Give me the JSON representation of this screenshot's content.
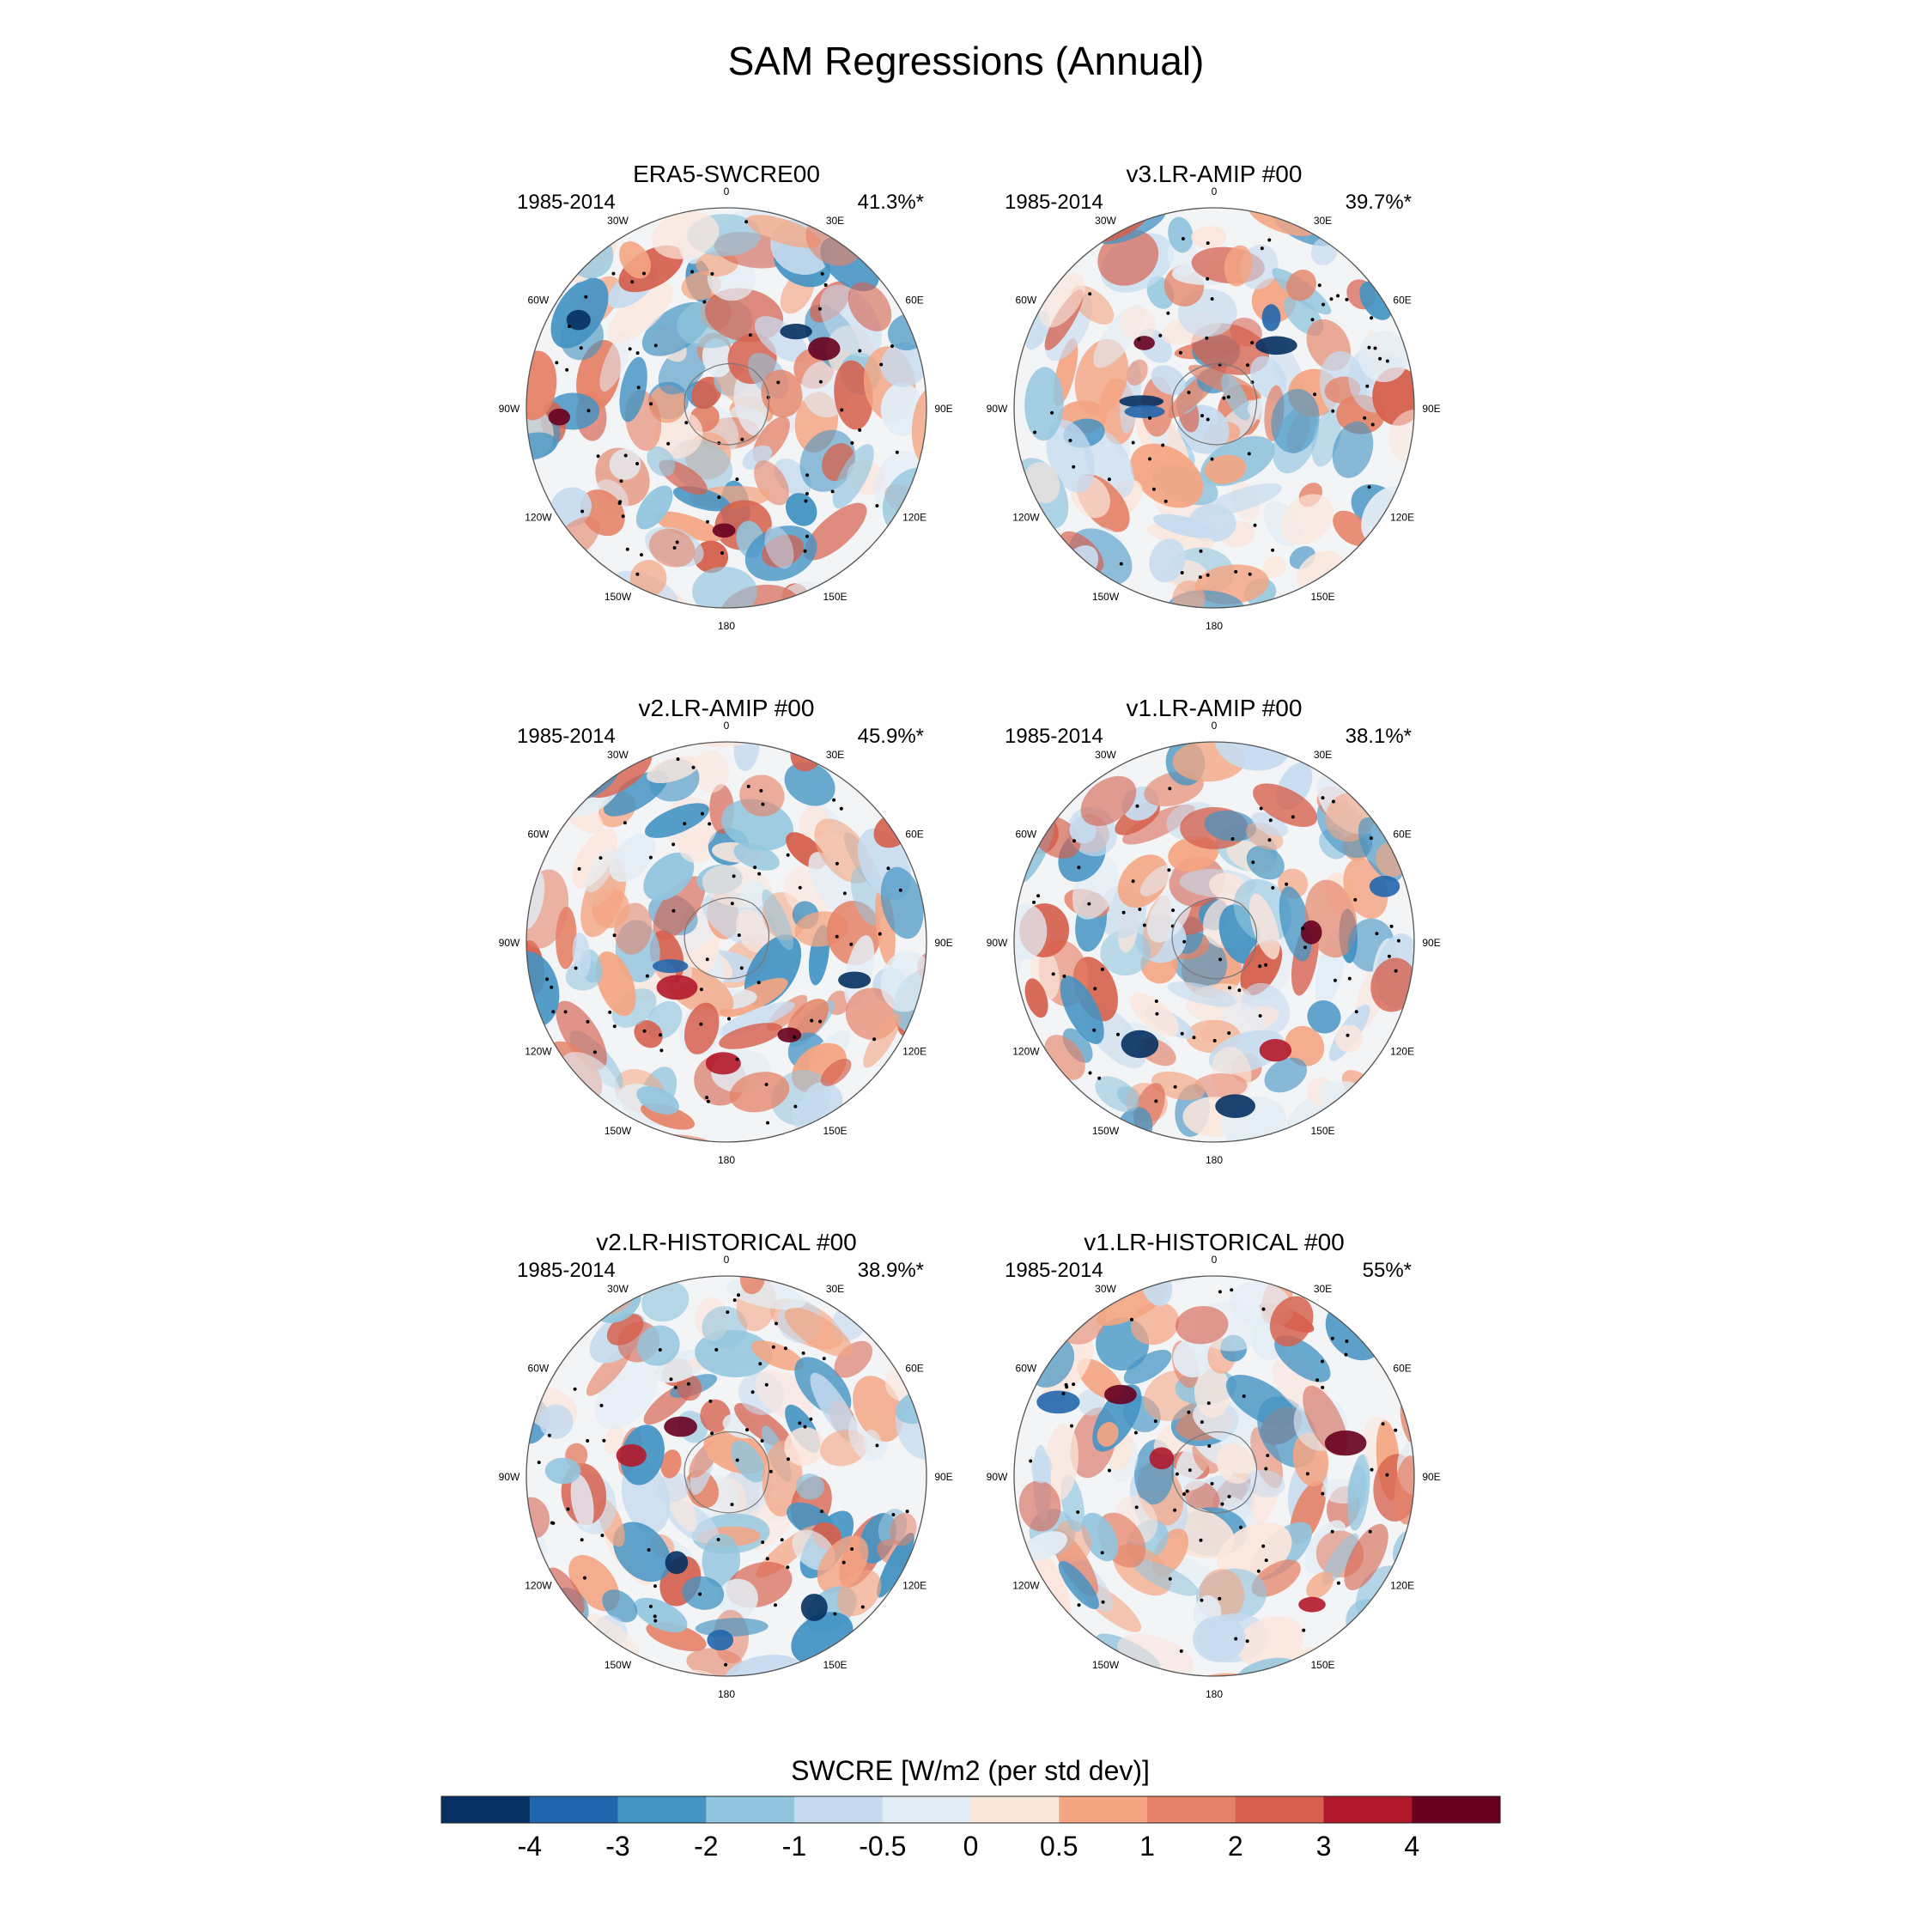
{
  "chart_data": {
    "type": "heatmap",
    "projection": "south-polar-stereographic",
    "title": "SAM Regressions (Annual)",
    "colorbar": {
      "label": "SWCRE [W/m2 (per std dev)]",
      "ticks": [
        "-4",
        "-3",
        "-2",
        "-1",
        "-0.5",
        "0",
        "0.5",
        "1",
        "2",
        "3",
        "4"
      ],
      "colors": [
        "#053061",
        "#2166ac",
        "#4393c3",
        "#92c5de",
        "#c6dbef",
        "#e3edf5",
        "#fbe6dc",
        "#f4a582",
        "#e58267",
        "#d6604d",
        "#b2182b",
        "#67001f"
      ]
    },
    "longitude_labels": [
      "0",
      "30E",
      "60E",
      "90E",
      "120E",
      "150E",
      "180",
      "150W",
      "120W",
      "90W",
      "60W",
      "30W"
    ],
    "panels": [
      {
        "title": "ERA5-SWCRE00",
        "period": "1985-2014",
        "variance": "41.3%*",
        "seed": 11
      },
      {
        "title": "v3.LR-AMIP  #00",
        "period": "1985-2014",
        "variance": "39.7%*",
        "seed": 23
      },
      {
        "title": "v2.LR-AMIP  #00",
        "period": "1985-2014",
        "variance": "45.9%*",
        "seed": 37
      },
      {
        "title": "v1.LR-AMIP  #00",
        "period": "1985-2014",
        "variance": "38.1%*",
        "seed": 41
      },
      {
        "title": "v2.LR-HISTORICAL  #00",
        "period": "1985-2014",
        "variance": "38.9%*",
        "seed": 53
      },
      {
        "title": "v1.LR-HISTORICAL  #00",
        "period": "1985-2014",
        "variance": "55%*",
        "seed": 67
      }
    ]
  }
}
